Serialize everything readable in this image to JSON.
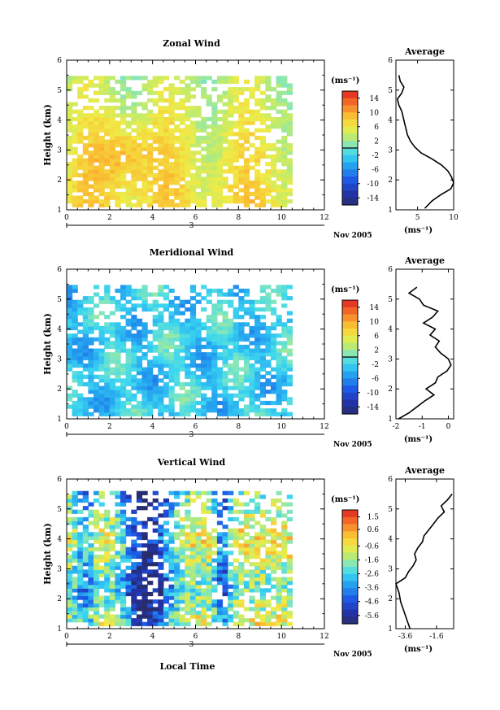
{
  "figure": {
    "time_axis_label": "Local Time",
    "date_label": "Nov 2005",
    "day_marker": "3"
  },
  "chart_data": [
    {
      "type": "heatmap",
      "title": "Zonal Wind",
      "xlabel": "",
      "ylabel": "Height (km)",
      "xlim": [
        0,
        12
      ],
      "ylim": [
        1,
        6
      ],
      "xticks": [
        "0",
        "2",
        "4",
        "6",
        "8",
        "10",
        "12"
      ],
      "yticks": [
        "1",
        "2",
        "3",
        "4",
        "5",
        "6"
      ],
      "data_extent_hours": [
        0,
        10.5
      ],
      "colorbar": {
        "unit": "(ms⁻¹)",
        "range": [
          -16,
          16
        ],
        "tick_labels": [
          "14",
          "10",
          "6",
          "2",
          "-2",
          "-6",
          "-10",
          "-14"
        ],
        "tick_values": [
          14,
          10,
          6,
          2,
          -2,
          -6,
          -10,
          -14
        ],
        "zero_line": true
      },
      "description_of_field": "Mostly positive (eastward) values 2-10 m/s, peak ~12 near 2-3 LT around 2-4 km",
      "average_profile": {
        "title": "Average",
        "xlabel": "(ms⁻¹)",
        "xlim": [
          2,
          10
        ],
        "xticks": [
          "5",
          "10"
        ],
        "xtick_values": [
          5,
          10
        ],
        "ylim": [
          1,
          6
        ],
        "yticks": [
          "1",
          "2",
          "3",
          "4",
          "5",
          "6"
        ],
        "height_km": [
          1.05,
          1.3,
          1.5,
          1.7,
          1.9,
          2.1,
          2.3,
          2.5,
          2.7,
          2.9,
          3.1,
          3.3,
          3.5,
          3.7,
          3.9,
          4.1,
          4.3,
          4.5,
          4.7,
          4.9,
          5.1,
          5.3,
          5.5
        ],
        "wind": [
          6.0,
          7.0,
          8.2,
          9.6,
          10.0,
          9.7,
          9.2,
          8.3,
          7.0,
          5.5,
          4.6,
          4.0,
          3.6,
          3.4,
          3.2,
          3.0,
          2.8,
          2.4,
          2.2,
          2.8,
          3.1,
          2.6,
          2.4
        ]
      }
    },
    {
      "type": "heatmap",
      "title": "Meridional Wind",
      "xlabel": "",
      "ylabel": "Height (km)",
      "xlim": [
        0,
        12
      ],
      "ylim": [
        1,
        6
      ],
      "xticks": [
        "0",
        "2",
        "4",
        "6",
        "8",
        "10",
        "12"
      ],
      "yticks": [
        "1",
        "2",
        "3",
        "4",
        "5",
        "6"
      ],
      "data_extent_hours": [
        0,
        10.5
      ],
      "colorbar": {
        "unit": "(ms⁻¹)",
        "range": [
          -16,
          16
        ],
        "tick_labels": [
          "14",
          "10",
          "6",
          "2",
          "-2",
          "-6",
          "-10",
          "-14"
        ],
        "tick_values": [
          14,
          10,
          6,
          2,
          -2,
          -6,
          -10,
          -14
        ],
        "zero_line": true
      },
      "description_of_field": "Mostly weak negative values -5 to 0 m/s with patches near 0",
      "average_profile": {
        "title": "Average",
        "xlabel": "(ms⁻¹)",
        "xlim": [
          -2,
          0.2
        ],
        "xticks": [
          "-2",
          "-1",
          "0"
        ],
        "xtick_values": [
          -2,
          -1,
          0
        ],
        "ylim": [
          1,
          6
        ],
        "yticks": [
          "1",
          "2",
          "3",
          "4",
          "5",
          "6"
        ],
        "height_km": [
          1.0,
          1.2,
          1.4,
          1.6,
          1.8,
          2.0,
          2.2,
          2.4,
          2.6,
          2.8,
          3.0,
          3.2,
          3.4,
          3.6,
          3.8,
          4.0,
          4.2,
          4.4,
          4.6,
          4.8,
          5.0,
          5.2,
          5.4
        ],
        "wind": [
          -1.9,
          -1.5,
          -1.2,
          -0.9,
          -0.55,
          -0.85,
          -0.5,
          -0.4,
          -0.05,
          0.1,
          0.0,
          -0.3,
          -0.5,
          -0.35,
          -0.7,
          -0.5,
          -0.95,
          -0.6,
          -0.4,
          -0.95,
          -1.1,
          -1.5,
          -1.2
        ]
      }
    },
    {
      "type": "heatmap",
      "title": "Vertical Wind",
      "xlabel": "Local Time",
      "ylabel": "Height (km)",
      "xlim": [
        0,
        12
      ],
      "ylim": [
        1,
        6
      ],
      "xticks": [
        "0",
        "2",
        "4",
        "6",
        "8",
        "10",
        "12"
      ],
      "yticks": [
        "1",
        "2",
        "3",
        "4",
        "5",
        "6"
      ],
      "data_extent_hours": [
        0,
        10.5
      ],
      "colorbar": {
        "unit": "(ms⁻¹)",
        "range": [
          -6.2,
          2.0
        ],
        "tick_labels": [
          "1.5",
          "0.6",
          "-0.6",
          "-1.6",
          "-2.6",
          "-3.6",
          "-4.6",
          "-5.6"
        ],
        "tick_values": [
          1.5,
          0.6,
          -0.6,
          -1.6,
          -2.6,
          -3.6,
          -4.6,
          -5.6
        ],
        "zero_line": false
      },
      "description_of_field": "Strong downward motion -5 to -6 m/s around 2-5 LT; weaker -1 to -3 elsewhere",
      "average_profile": {
        "title": "Average",
        "xlabel": "(ms⁻¹)",
        "xlim": [
          -4.2,
          -0.5
        ],
        "xticks": [
          "-3.6",
          "-1.6"
        ],
        "xtick_values": [
          -3.6,
          -1.6
        ],
        "ylim": [
          1,
          6
        ],
        "yticks": [
          "1",
          "2",
          "3",
          "4",
          "5",
          "6"
        ],
        "height_km": [
          1.0,
          1.3,
          1.6,
          1.9,
          2.2,
          2.5,
          2.7,
          2.9,
          3.1,
          3.3,
          3.5,
          3.7,
          3.9,
          4.1,
          4.3,
          4.5,
          4.7,
          4.9,
          5.1,
          5.3,
          5.5
        ],
        "wind": [
          -3.3,
          -3.5,
          -3.7,
          -3.9,
          -4.0,
          -4.2,
          -3.6,
          -3.4,
          -3.1,
          -2.9,
          -3.0,
          -2.8,
          -2.5,
          -2.4,
          -2.1,
          -1.8,
          -1.5,
          -1.1,
          -1.3,
          -0.9,
          -0.6
        ]
      }
    }
  ]
}
